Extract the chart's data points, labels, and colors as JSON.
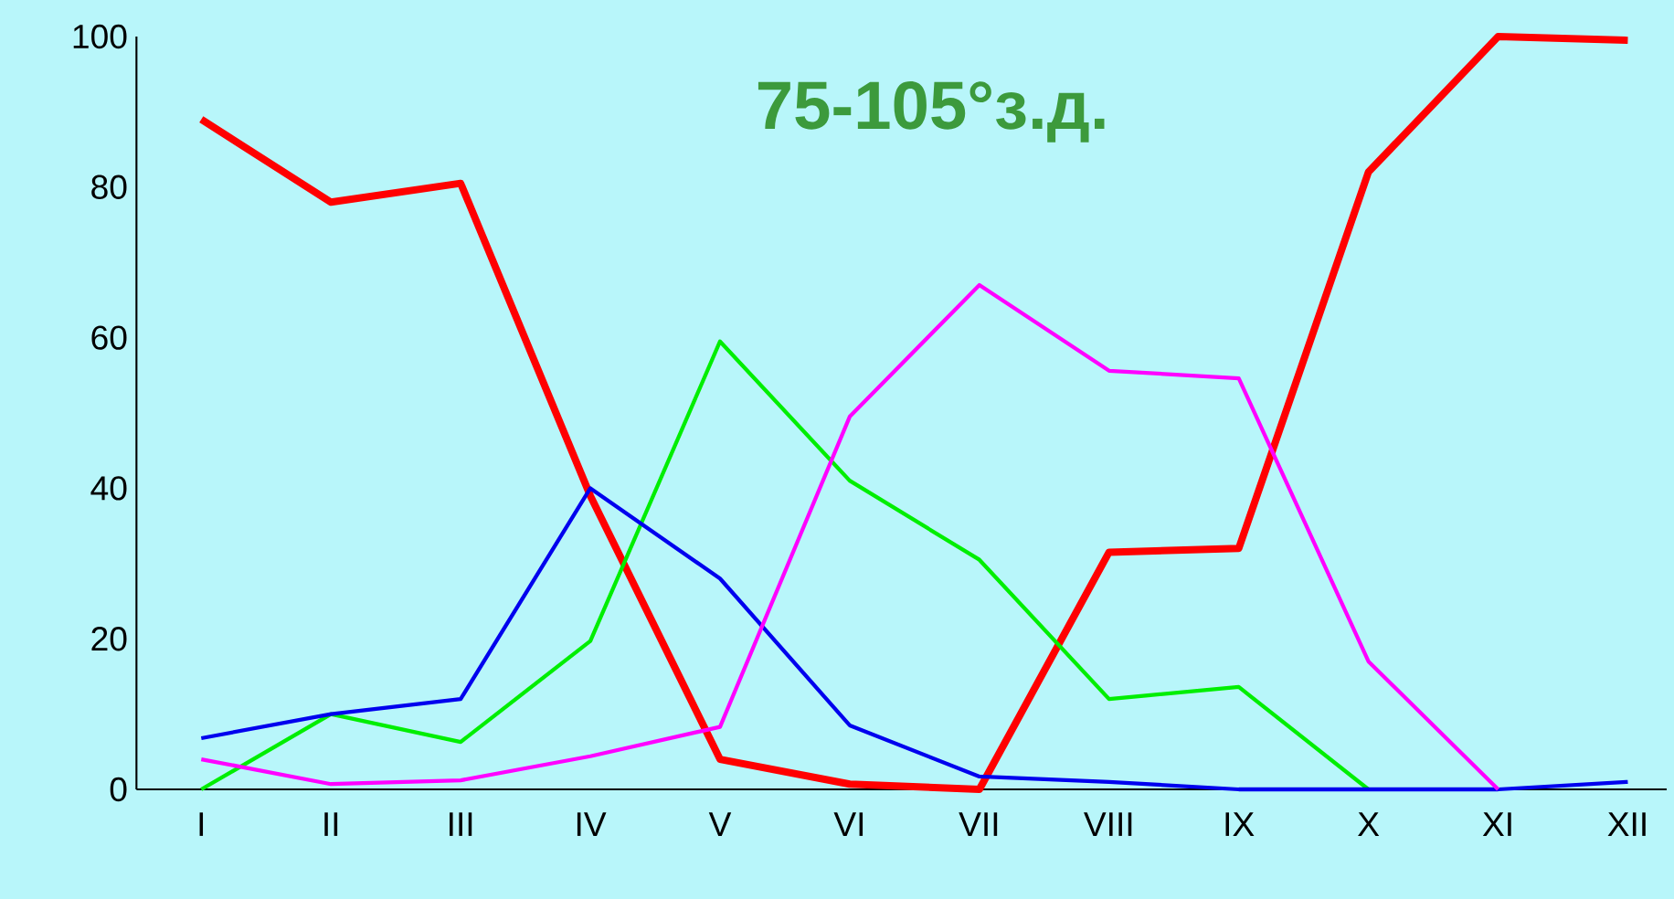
{
  "chart_data": {
    "type": "line",
    "title": "75-105°з.д.",
    "categories": [
      "I",
      "II",
      "III",
      "IV",
      "V",
      "VI",
      "VII",
      "VIII",
      "IX",
      "X",
      "XI",
      "XII"
    ],
    "series": [
      {
        "color": "#ff0000",
        "values": [
          89,
          78,
          80.5,
          39,
          4,
          0.7,
          0,
          31.5,
          32,
          82,
          100,
          99.5
        ]
      },
      {
        "color": "#00ee00",
        "values": [
          0,
          10,
          6.3,
          19.7,
          59.5,
          41,
          30.5,
          12,
          13.6,
          0,
          null,
          null
        ]
      },
      {
        "color": "#0000ee",
        "values": [
          6.8,
          10,
          12,
          40,
          28,
          8.5,
          1.7,
          1,
          0,
          0,
          0,
          1
        ]
      },
      {
        "color": "#ff00ff",
        "values": [
          4,
          0.7,
          1.2,
          4.4,
          8.3,
          49.5,
          67,
          55.6,
          54.6,
          17,
          0,
          null
        ]
      }
    ],
    "ylim": [
      0,
      100
    ],
    "yticks": [
      0,
      20,
      40,
      60,
      80,
      100
    ],
    "grid": false,
    "marker": "none",
    "line_style": "solid"
  }
}
